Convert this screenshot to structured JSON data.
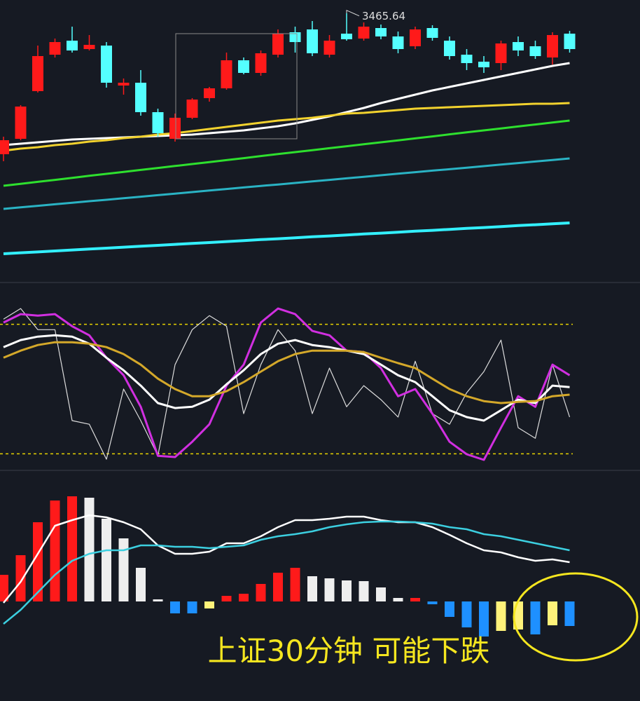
{
  "chart_data": [
    {
      "type": "candlestick",
      "ylim": [
        3275,
        3475
      ],
      "up_color": "#ff1a1a",
      "down_color": "#54ffff",
      "open": [
        3365,
        3376,
        3410,
        3436,
        3446,
        3440,
        3442.5,
        3414,
        3416,
        3395,
        3376,
        3391,
        3405,
        3412,
        3432,
        3423,
        3436,
        3452,
        3454,
        3436,
        3451,
        3447.5,
        3455,
        3449,
        3442,
        3455,
        3446,
        3436,
        3431,
        3430,
        3445,
        3442,
        3434,
        3451
      ],
      "close": [
        3375,
        3399,
        3435,
        3445,
        3439,
        3443,
        3416,
        3416,
        3395,
        3380,
        3391,
        3404,
        3412,
        3432,
        3423,
        3437,
        3451,
        3445,
        3437,
        3446,
        3447,
        3456,
        3449,
        3440,
        3454,
        3448,
        3435,
        3430,
        3427,
        3444,
        3439,
        3435,
        3450,
        3440
      ],
      "high": [
        3377.5,
        3400,
        3442.5,
        3447.5,
        3456,
        3450,
        3445,
        3419,
        3425,
        3397.5,
        3394,
        3405,
        3413,
        3437.5,
        3434,
        3439,
        3454,
        3456,
        3460,
        3450,
        3465.64,
        3459,
        3457.5,
        3452.5,
        3456,
        3457,
        3449,
        3440,
        3435,
        3446,
        3449,
        3446,
        3452,
        3453
      ],
      "low": [
        3360,
        3375,
        3409,
        3434,
        3437.5,
        3439,
        3412.5,
        3407.5,
        3392.5,
        3377.5,
        3374,
        3390,
        3402.5,
        3411,
        3422,
        3421,
        3434,
        3437.5,
        3435,
        3434,
        3446,
        3446,
        3447,
        3437,
        3440,
        3446,
        3432.5,
        3425,
        3423,
        3425,
        3435,
        3433,
        3429,
        3437.5
      ],
      "high_label": "3465.64",
      "series": [
        {
          "color": "#ffffff",
          "width": 3,
          "values": [
            3371.5,
            3372.5,
            3373.5,
            3374.5,
            3375.5,
            3376,
            3376.5,
            3377,
            3377.5,
            3378,
            3378.5,
            3379,
            3380,
            3381,
            3382,
            3383.5,
            3385,
            3387,
            3389.5,
            3392,
            3395,
            3398,
            3401.5,
            3404.5,
            3407.5,
            3410.5,
            3413,
            3415.5,
            3418,
            3420.5,
            3423,
            3425.5,
            3428,
            3430
          ]
        },
        {
          "color": "#f2d22e",
          "width": 3,
          "values": [
            3367.5,
            3369,
            3370,
            3371.5,
            3372.5,
            3374,
            3375,
            3376.5,
            3377.5,
            3379,
            3380,
            3381.5,
            3383,
            3384.5,
            3386,
            3387.5,
            3389,
            3390,
            3391,
            3392.5,
            3394,
            3394.5,
            3395.5,
            3396.5,
            3397.5,
            3398,
            3398.5,
            3399,
            3399.5,
            3400,
            3400.5,
            3401,
            3401,
            3401.5
          ]
        },
        {
          "color": "#2ee02e",
          "width": 3,
          "values": [
            3342.5,
            3343.9,
            3345.3,
            3346.7,
            3348.1,
            3349.6,
            3351,
            3352.4,
            3353.8,
            3355.2,
            3356.6,
            3358,
            3359.4,
            3360.8,
            3362.2,
            3363.7,
            3365.1,
            3366.5,
            3367.9,
            3369.3,
            3370.7,
            3372.1,
            3373.5,
            3374.9,
            3376.3,
            3377.7,
            3379.2,
            3380.6,
            3382,
            3383.4,
            3384.8,
            3386.2,
            3387.6,
            3389
          ]
        },
        {
          "color": "#2ab3c4",
          "width": 3,
          "values": [
            3326,
            3327.1,
            3328.2,
            3329.3,
            3330.4,
            3331.5,
            3332.5,
            3333.6,
            3334.7,
            3335.8,
            3336.9,
            3338,
            3339.1,
            3340.2,
            3341.3,
            3342.4,
            3343.4,
            3344.5,
            3345.6,
            3346.7,
            3347.8,
            3348.9,
            3350,
            3351.1,
            3352.2,
            3353.3,
            3354.3,
            3355.4,
            3356.5,
            3357.6,
            3358.7,
            3359.8,
            3360.9,
            3362
          ]
        },
        {
          "color": "#33f0ff",
          "width": 4,
          "values": [
            3294,
            3294.7,
            3295.3,
            3296,
            3296.7,
            3297.4,
            3298,
            3298.7,
            3299.4,
            3300,
            3300.7,
            3301.4,
            3302,
            3302.7,
            3303.4,
            3304.1,
            3304.7,
            3305.4,
            3306.1,
            3306.7,
            3307.4,
            3308.1,
            3308.7,
            3309.4,
            3310.1,
            3310.7,
            3311.4,
            3312.1,
            3312.7,
            3313.4,
            3314.1,
            3314.7,
            3315.4,
            3316
          ]
        }
      ]
    },
    {
      "type": "line",
      "ylim": [
        0,
        100
      ],
      "hlines": [
        20,
        80
      ],
      "hline_color": "#e6d200",
      "series": [
        {
          "color": "#dddddd",
          "width": 1.2,
          "values": [
            82.4,
            87.3,
            77.5,
            77.5,
            35.4,
            33.7,
            17.5,
            50,
            35.4,
            19.1,
            61.3,
            77.5,
            84,
            79.1,
            38.6,
            61.3,
            77.5,
            67.8,
            38.6,
            59.7,
            41.8,
            51.6,
            45.1,
            37,
            62.9,
            38.6,
            33.7,
            48.3,
            58.1,
            72.7,
            32.1,
            27.2,
            61.3,
            37
          ]
        },
        {
          "color": "#d12fe0",
          "width": 3,
          "values": [
            80.8,
            84.7,
            84,
            84.7,
            79.1,
            74.9,
            64.5,
            56.4,
            41.8,
            19.1,
            18.5,
            25.6,
            33.7,
            51.6,
            61.3,
            80.8,
            87.3,
            84.7,
            76.9,
            74.9,
            67.8,
            67.1,
            59.7,
            46.7,
            50,
            38.6,
            25.6,
            19.8,
            17.2,
            32.1,
            46.7,
            41.8,
            61.3,
            56.4
          ]
        },
        {
          "color": "#ffffff",
          "width": 3,
          "values": [
            69.4,
            72.7,
            74.3,
            74.9,
            74.3,
            71,
            64.5,
            58.7,
            51.6,
            43.5,
            41.2,
            41.8,
            45.1,
            52.2,
            58.7,
            66.2,
            71,
            72.7,
            70.4,
            69.4,
            67.8,
            66.2,
            61.3,
            56.4,
            53.2,
            46.7,
            40.2,
            37,
            35.4,
            40.2,
            45.1,
            43.5,
            51.6,
            50.9
          ]
        },
        {
          "color": "#d4a82a",
          "width": 3,
          "values": [
            64.5,
            67.8,
            70.4,
            71.7,
            71.7,
            71,
            69.4,
            66.2,
            61.3,
            54.8,
            50,
            46.7,
            46.7,
            49,
            53.2,
            58.1,
            62.9,
            66.2,
            67.8,
            67.8,
            67.8,
            67.1,
            64.5,
            62,
            59.7,
            54.8,
            50,
            46.7,
            44.4,
            43.5,
            44.1,
            44.4,
            46.7,
            47.4
          ]
        }
      ]
    },
    {
      "type": "bar",
      "ylim": [
        -27,
        36
      ],
      "values": [
        7.6,
        13.2,
        22.6,
        28.8,
        30,
        29.6,
        23.6,
        18,
        9.6,
        0.6,
        -3.4,
        -3.4,
        -2,
        1.6,
        2.2,
        5,
        8.2,
        9.6,
        7.2,
        6.6,
        6,
        5.8,
        4,
        1,
        1,
        -0.8,
        -4.4,
        -7.4,
        -10,
        -8.4,
        -8,
        -9.4,
        -6.8,
        -7
      ],
      "colors": [
        "#ff1a1a",
        "#ff1a1a",
        "#ff1a1a",
        "#ff1a1a",
        "#ff1a1a",
        "#eeeeee",
        "#eeeeee",
        "#eeeeee",
        "#eeeeee",
        "#eeeeee",
        "#1e90ff",
        "#1e90ff",
        "#fff27a",
        "#ff1a1a",
        "#ff1a1a",
        "#ff1a1a",
        "#ff1a1a",
        "#ff1a1a",
        "#eeeeee",
        "#eeeeee",
        "#eeeeee",
        "#eeeeee",
        "#eeeeee",
        "#eeeeee",
        "#ff1a1a",
        "#1e90ff",
        "#1e90ff",
        "#1e90ff",
        "#1e90ff",
        "#fff27a",
        "#fff27a",
        "#1e90ff",
        "#fff27a",
        "#1e90ff"
      ],
      "series": [
        {
          "color": "#ffffff",
          "width": 2.5,
          "values": [
            -0.4,
            5.6,
            13.6,
            21.6,
            23.2,
            24.6,
            24,
            22.6,
            20.6,
            16,
            13.6,
            13.6,
            14.2,
            16.6,
            16.6,
            18.6,
            21.2,
            23.2,
            23.2,
            23.6,
            24.2,
            24.2,
            23.2,
            22.6,
            22.6,
            21.2,
            19,
            16.6,
            14.6,
            14,
            12.6,
            11.6,
            12,
            11.2
          ]
        },
        {
          "color": "#3ccfe0",
          "width": 2.5,
          "values": [
            -6.4,
            -2.4,
            2.6,
            7.6,
            11.6,
            13.6,
            14.6,
            14.6,
            16,
            16,
            15.6,
            15.6,
            15.2,
            15.6,
            16,
            17.6,
            18.6,
            19.2,
            20,
            21.2,
            22,
            22.6,
            22.8,
            22.8,
            22.6,
            22.2,
            21.2,
            20.6,
            19.2,
            18.6,
            17.6,
            16.6,
            15.6,
            14.6
          ]
        }
      ]
    }
  ],
  "caption": "上证30分钟 可能下跌"
}
